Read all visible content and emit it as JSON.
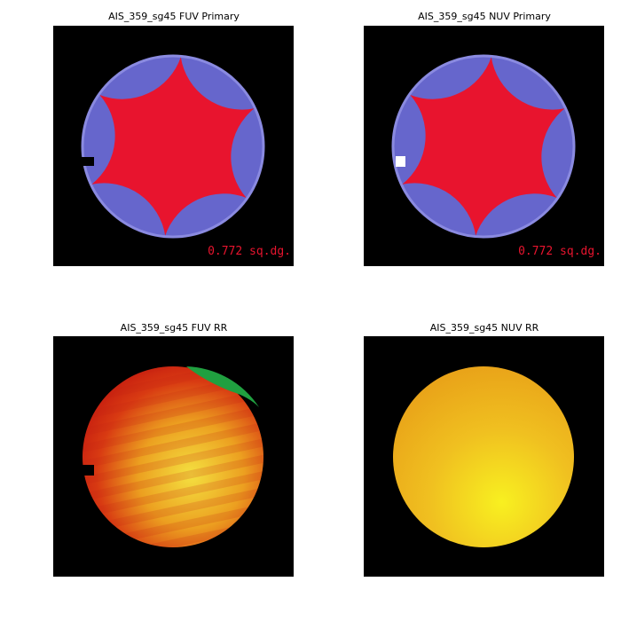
{
  "panels": [
    {
      "title": "AIS_359_sg45 FUV Primary",
      "annotation": "0.772 sq.dg."
    },
    {
      "title": "AIS_359_sg45 NUV Primary",
      "annotation": "0.772 sq.dg."
    },
    {
      "title": "AIS_359_sg45 FUV RR"
    },
    {
      "title": "AIS_359_sg45 NUV RR"
    }
  ]
}
